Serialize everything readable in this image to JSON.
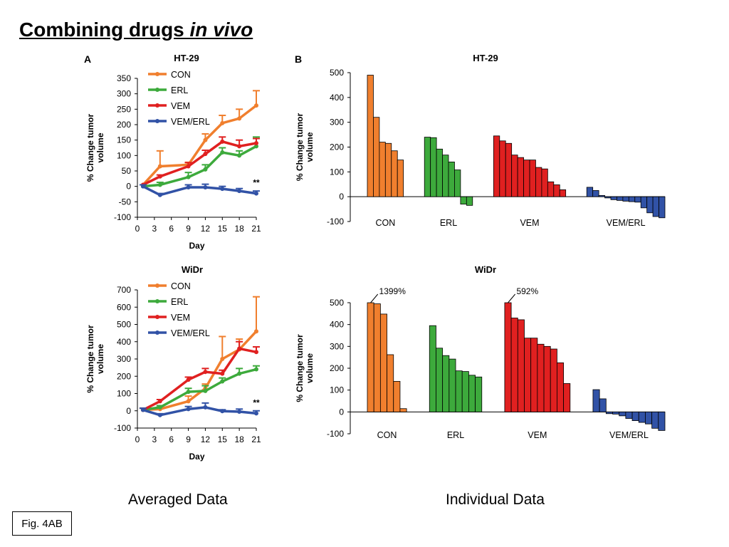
{
  "slide": {
    "title_main": "Combining drugs ",
    "title_italic": "in vivo",
    "caption_left": "Averaged Data",
    "caption_right": "Individual Data",
    "fig_label": "Fig. 4AB"
  },
  "colors": {
    "CON": "#F07F2E",
    "ERL": "#3DAA3C",
    "VEM": "#E02020",
    "VEM/ERL": "#3152A6"
  },
  "chart_data": [
    {
      "panel_letter": "A",
      "type": "line",
      "title": "HT-29",
      "xlabel": "Day",
      "ylabel": "% Change tumor volume",
      "xlim": [
        0,
        21
      ],
      "ylim": [
        -100,
        350
      ],
      "xticks": [
        0,
        3,
        6,
        9,
        12,
        15,
        18,
        21
      ],
      "yticks": [
        -100,
        -50,
        0,
        50,
        100,
        150,
        200,
        250,
        300,
        350
      ],
      "x": [
        1,
        4,
        9,
        12,
        15,
        18,
        21
      ],
      "annotation": "**",
      "legend_location": "top-left",
      "series": [
        {
          "name": "CON",
          "values": [
            5,
            65,
            70,
            150,
            205,
            220,
            262
          ],
          "err": [
            0,
            50,
            8,
            20,
            25,
            30,
            48
          ]
        },
        {
          "name": "ERL",
          "values": [
            0,
            5,
            30,
            55,
            110,
            100,
            130
          ],
          "err": [
            0,
            8,
            15,
            15,
            15,
            15,
            30
          ]
        },
        {
          "name": "VEM",
          "values": [
            5,
            32,
            65,
            105,
            145,
            130,
            140
          ],
          "err": [
            0,
            5,
            12,
            12,
            15,
            20,
            15
          ]
        },
        {
          "name": "VEM/ERL",
          "values": [
            0,
            -28,
            -3,
            -3,
            -8,
            -15,
            -23
          ],
          "err": [
            5,
            5,
            8,
            10,
            8,
            8,
            8
          ]
        }
      ]
    },
    {
      "type": "bar",
      "title": "HT-29",
      "panel_letter": "B",
      "ylabel": "% Change tumor volume",
      "ylim": [
        -100,
        500
      ],
      "yticks": [
        -100,
        0,
        100,
        200,
        300,
        400,
        500
      ],
      "groups": [
        {
          "name": "CON",
          "values": [
            490,
            320,
            220,
            215,
            185,
            148
          ]
        },
        {
          "name": "ERL",
          "values": [
            240,
            238,
            192,
            168,
            140,
            108,
            -30,
            -35
          ]
        },
        {
          "name": "VEM",
          "values": [
            245,
            225,
            215,
            168,
            158,
            148,
            148,
            118,
            112,
            60,
            48,
            28
          ]
        },
        {
          "name": "VEM/ERL",
          "values": [
            38,
            25,
            5,
            -5,
            -12,
            -15,
            -18,
            -20,
            -22,
            -45,
            -65,
            -80,
            -85
          ]
        }
      ]
    },
    {
      "type": "line",
      "title": "WiDr",
      "xlabel": "Day",
      "ylabel": "% Change tumor volume",
      "xlim": [
        0,
        21
      ],
      "ylim": [
        -100,
        700
      ],
      "xticks": [
        0,
        3,
        6,
        9,
        12,
        15,
        18,
        21
      ],
      "yticks": [
        -100,
        0,
        100,
        200,
        300,
        400,
        500,
        600,
        700
      ],
      "x": [
        1,
        4,
        9,
        12,
        15,
        18,
        21
      ],
      "annotation": "**",
      "legend_location": "top-left",
      "series": [
        {
          "name": "CON",
          "values": [
            5,
            10,
            55,
            130,
            300,
            355,
            460
          ],
          "err": [
            10,
            10,
            30,
            25,
            130,
            60,
            200
          ]
        },
        {
          "name": "ERL",
          "values": [
            5,
            20,
            110,
            115,
            170,
            215,
            240
          ],
          "err": [
            10,
            10,
            20,
            30,
            20,
            30,
            20
          ]
        },
        {
          "name": "VEM",
          "values": [
            5,
            55,
            180,
            225,
            215,
            360,
            340
          ],
          "err": [
            10,
            10,
            15,
            20,
            20,
            40,
            30
          ]
        },
        {
          "name": "VEM/ERL",
          "values": [
            5,
            -25,
            10,
            20,
            -2,
            -5,
            -15
          ],
          "err": [
            10,
            8,
            15,
            25,
            8,
            15,
            15
          ]
        }
      ]
    },
    {
      "type": "bar",
      "title": "WiDr",
      "ylabel": "% Change tumor volume",
      "ylim": [
        -100,
        500
      ],
      "yticks": [
        -100,
        0,
        100,
        200,
        300,
        400,
        500
      ],
      "annotations": [
        {
          "text": "1399%",
          "group": "CON",
          "bar": 0
        },
        {
          "text": "592%",
          "group": "VEM",
          "bar": 0
        }
      ],
      "groups": [
        {
          "name": "CON",
          "values": [
            500,
            495,
            448,
            262,
            140,
            15
          ]
        },
        {
          "name": "ERL",
          "values": [
            395,
            292,
            258,
            242,
            188,
            185,
            168,
            160
          ]
        },
        {
          "name": "VEM",
          "values": [
            500,
            430,
            422,
            338,
            338,
            310,
            300,
            288,
            225,
            130
          ]
        },
        {
          "name": "VEM/ERL",
          "values": [
            102,
            60,
            -8,
            -10,
            -18,
            -30,
            -40,
            -48,
            -55,
            -75,
            -85
          ]
        }
      ]
    }
  ]
}
